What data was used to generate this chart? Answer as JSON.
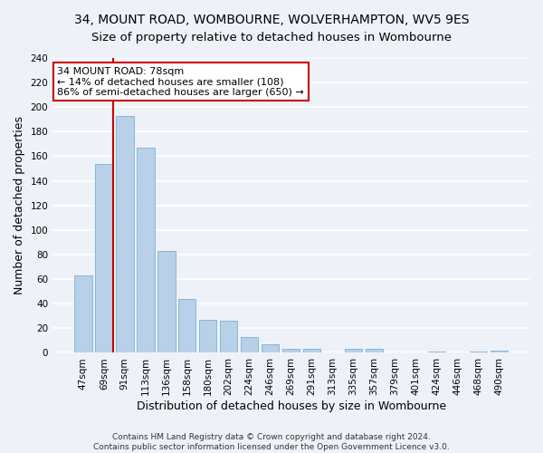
{
  "title": "34, MOUNT ROAD, WOMBOURNE, WOLVERHAMPTON, WV5 9ES",
  "subtitle": "Size of property relative to detached houses in Wombourne",
  "xlabel": "Distribution of detached houses by size in Wombourne",
  "ylabel": "Number of detached properties",
  "categories": [
    "47sqm",
    "69sqm",
    "91sqm",
    "113sqm",
    "136sqm",
    "158sqm",
    "180sqm",
    "202sqm",
    "224sqm",
    "246sqm",
    "269sqm",
    "291sqm",
    "313sqm",
    "335sqm",
    "357sqm",
    "379sqm",
    "401sqm",
    "424sqm",
    "446sqm",
    "468sqm",
    "490sqm"
  ],
  "values": [
    63,
    154,
    193,
    167,
    83,
    44,
    27,
    26,
    13,
    7,
    3,
    3,
    0,
    3,
    3,
    0,
    0,
    1,
    0,
    1,
    2
  ],
  "bar_color": "#b8d0e8",
  "bar_edge_color": "#7aafd4",
  "ref_line_color": "#cc0000",
  "annotation_text": "34 MOUNT ROAD: 78sqm\n← 14% of detached houses are smaller (108)\n86% of semi-detached houses are larger (650) →",
  "annotation_box_color": "#ffffff",
  "annotation_box_edge_color": "#cc0000",
  "ylim": [
    0,
    240
  ],
  "yticks": [
    0,
    20,
    40,
    60,
    80,
    100,
    120,
    140,
    160,
    180,
    200,
    220,
    240
  ],
  "footer": "Contains HM Land Registry data © Crown copyright and database right 2024.\nContains public sector information licensed under the Open Government Licence v3.0.",
  "bg_color": "#eef2f8",
  "grid_color": "#ffffff",
  "title_fontsize": 10,
  "subtitle_fontsize": 9.5,
  "label_fontsize": 9,
  "tick_fontsize": 7.5,
  "annot_fontsize": 8,
  "footer_fontsize": 6.5
}
